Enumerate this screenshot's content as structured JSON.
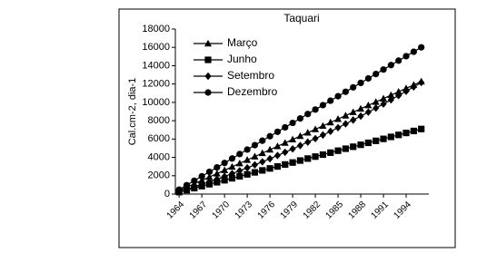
{
  "chart_data": {
    "type": "line",
    "title": "Taquari",
    "ylabel": "Cal.cm-2, dia-1",
    "x": [
      1964,
      1965,
      1966,
      1967,
      1968,
      1969,
      1970,
      1971,
      1972,
      1973,
      1974,
      1975,
      1976,
      1977,
      1978,
      1979,
      1980,
      1981,
      1982,
      1983,
      1984,
      1985,
      1986,
      1987,
      1988,
      1989,
      1990,
      1991,
      1992,
      1993,
      1994,
      1995,
      1996
    ],
    "xlim": [
      1963.5,
      1997
    ],
    "xticks": [
      1964,
      1967,
      1970,
      1973,
      1976,
      1979,
      1982,
      1985,
      1988,
      1991,
      1994
    ],
    "ylim": [
      0,
      18000
    ],
    "yticks": [
      0,
      2000,
      4000,
      6000,
      8000,
      10000,
      12000,
      14000,
      16000,
      18000
    ],
    "grid": false,
    "legend": "upper left",
    "series": [
      {
        "name": "Março",
        "color": "#000000",
        "marker": "triangle",
        "values": [
          372,
          744,
          1116,
          1488,
          1860,
          2232,
          2604,
          2976,
          3348,
          3720,
          4092,
          4464,
          4836,
          5208,
          5580,
          5952,
          6324,
          6696,
          7068,
          7440,
          7812,
          8184,
          8556,
          8928,
          9300,
          9672,
          10044,
          10416,
          10788,
          11160,
          11532,
          11904,
          12276
        ]
      },
      {
        "name": "Junho",
        "color": "#000000",
        "marker": "square",
        "values": [
          215,
          430,
          645,
          860,
          1075,
          1290,
          1505,
          1720,
          1935,
          2150,
          2365,
          2580,
          2795,
          3010,
          3225,
          3440,
          3655,
          3870,
          4085,
          4300,
          4515,
          4730,
          4945,
          5160,
          5375,
          5590,
          5805,
          6020,
          6235,
          6450,
          6665,
          6880,
          7095
        ]
      },
      {
        "name": "Setembro",
        "color": "#000000",
        "marker": "diamond",
        "values": [
          254,
          514,
          782,
          1058,
          1340,
          1630,
          1926,
          2230,
          2542,
          2860,
          3186,
          3518,
          3858,
          4206,
          4560,
          4922,
          5290,
          5666,
          6050,
          6440,
          6838,
          7242,
          7654,
          8074,
          8500,
          8934,
          9374,
          9822,
          10278,
          10740,
          11210,
          11686,
          12170
        ]
      },
      {
        "name": "Dezembro",
        "color": "#000000",
        "marker": "circle",
        "values": [
          485,
          970,
          1455,
          1940,
          2425,
          2910,
          3395,
          3880,
          4365,
          4850,
          5335,
          5820,
          6305,
          6790,
          7275,
          7760,
          8245,
          8730,
          9215,
          9700,
          10185,
          10670,
          11155,
          11640,
          12125,
          12610,
          13095,
          13580,
          14065,
          14550,
          15035,
          15520,
          16005
        ]
      }
    ]
  }
}
